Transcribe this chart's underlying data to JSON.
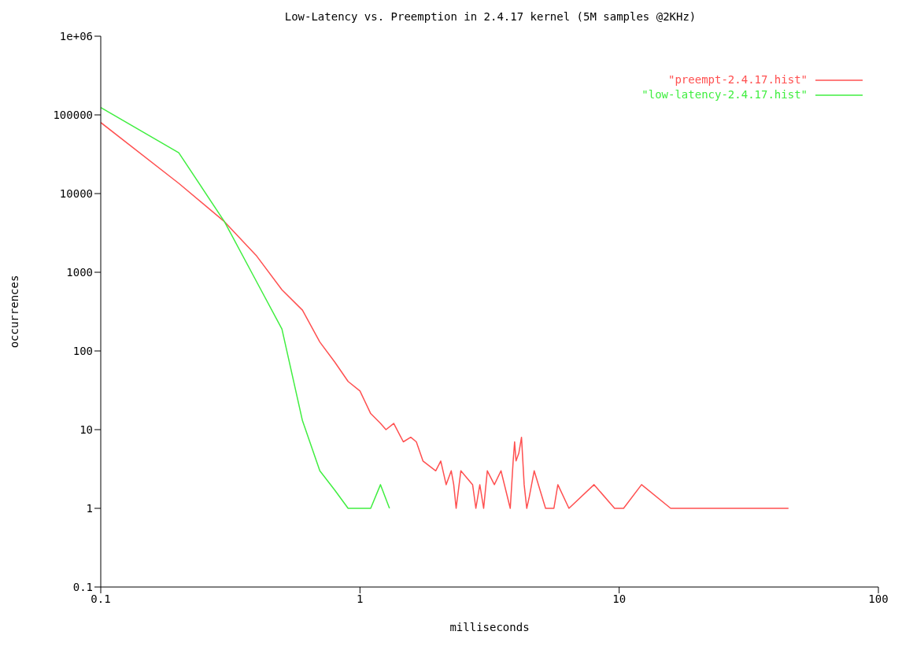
{
  "chart_data": {
    "type": "line",
    "title": "Low-Latency vs. Preemption in 2.4.17 kernel (5M samples @2KHz)",
    "xlabel": "milliseconds",
    "ylabel": "occurrences",
    "log": "xy",
    "grid": false,
    "legend": "top right",
    "marker": "none",
    "line_style": "solid",
    "xlim": [
      0.1,
      100
    ],
    "xticks": [
      0.1,
      1,
      10,
      100
    ],
    "ylim": [
      0.1,
      1000000
    ],
    "yticks": [
      0.1,
      1,
      10,
      100,
      1000,
      10000,
      100000,
      {
        "value": 1000000,
        "label": "1e+06"
      }
    ],
    "series": [
      {
        "name": "\"preempt-2.4.17.hist\"",
        "color": "#ff5050",
        "x": [
          0.1,
          0.2,
          0.3,
          0.4,
          0.5,
          0.6,
          0.7,
          0.8,
          0.9,
          1.0,
          1.1,
          1.2,
          1.26,
          1.35,
          1.47,
          1.57,
          1.65,
          1.75,
          1.96,
          2.05,
          2.15,
          2.25,
          2.3,
          2.35,
          2.45,
          2.72,
          2.8,
          2.9,
          3.0,
          3.1,
          3.3,
          3.5,
          3.8,
          3.9,
          3.95,
          4.0,
          4.1,
          4.2,
          4.3,
          4.4,
          4.5,
          4.7,
          5.2,
          5.6,
          5.8,
          6.4,
          8,
          9.6,
          10.4,
          12.2,
          15.8,
          45
        ],
        "values": [
          80000,
          13500,
          4400,
          1600,
          600,
          330,
          130,
          72,
          41,
          31,
          16,
          12,
          10,
          12,
          7,
          8,
          7,
          4,
          3,
          4,
          2,
          3,
          2,
          1,
          3,
          2,
          1,
          2,
          1,
          3,
          2,
          3,
          1,
          4,
          7,
          4,
          5,
          8,
          2,
          1,
          1.4,
          3,
          1,
          1,
          2,
          1,
          2,
          1,
          1,
          2,
          1,
          1
        ]
      },
      {
        "name": "\"low-latency-2.4.17.hist\"",
        "color": "#40ee40",
        "x": [
          0.1,
          0.2,
          0.3,
          0.4,
          0.5,
          0.6,
          0.7,
          0.8,
          0.9,
          1.0,
          1.1,
          1.2,
          1.3
        ],
        "values": [
          124000,
          33000,
          4400,
          750,
          190,
          13,
          3,
          1.7,
          1,
          1,
          1,
          2,
          1
        ]
      }
    ]
  }
}
